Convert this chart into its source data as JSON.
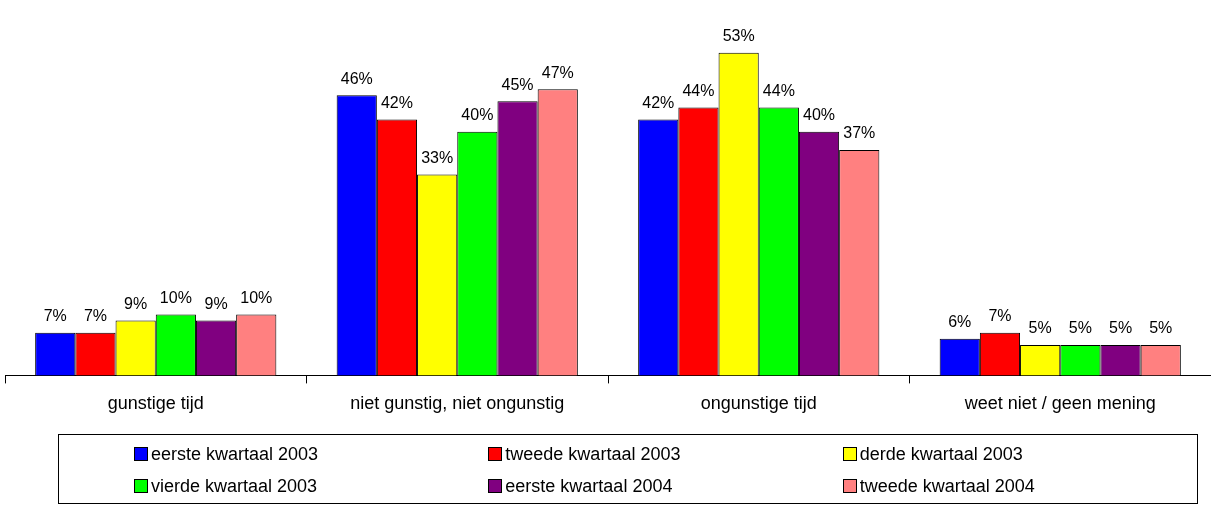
{
  "chart_data": {
    "type": "bar",
    "categories": [
      "gunstige tijd",
      "niet gunstig, niet ongunstig",
      "ongunstige tijd",
      "weet niet / geen mening"
    ],
    "series": [
      {
        "name": "eerste kwartaal 2003",
        "color": "#0000ff",
        "values": [
          7,
          46,
          42,
          6
        ],
        "value_labels": [
          "7%",
          "46%",
          "42%",
          "6%"
        ]
      },
      {
        "name": "tweede kwartaal 2003",
        "color": "#ff0000",
        "values": [
          7,
          42,
          44,
          7
        ],
        "value_labels": [
          "7%",
          "42%",
          "44%",
          "7%"
        ]
      },
      {
        "name": "derde kwartaal 2003",
        "color": "#ffff00",
        "values": [
          9,
          33,
          53,
          5
        ],
        "value_labels": [
          "9%",
          "33%",
          "53%",
          "5%"
        ]
      },
      {
        "name": "vierde kwartaal 2003",
        "color": "#00ff00",
        "values": [
          10,
          40,
          44,
          5
        ],
        "value_labels": [
          "10%",
          "40%",
          "44%",
          "5%"
        ]
      },
      {
        "name": "eerste kwartaal 2004",
        "color": "#800080",
        "values": [
          9,
          45,
          40,
          5
        ],
        "value_labels": [
          "9%",
          "45%",
          "40%",
          "5%"
        ]
      },
      {
        "name": "tweede kwartaal 2004",
        "color": "#ff8080",
        "values": [
          10,
          47,
          37,
          5
        ],
        "value_labels": [
          "10%",
          "47%",
          "37%",
          "5%"
        ]
      }
    ],
    "legend": "bottom",
    "grid": false
  }
}
